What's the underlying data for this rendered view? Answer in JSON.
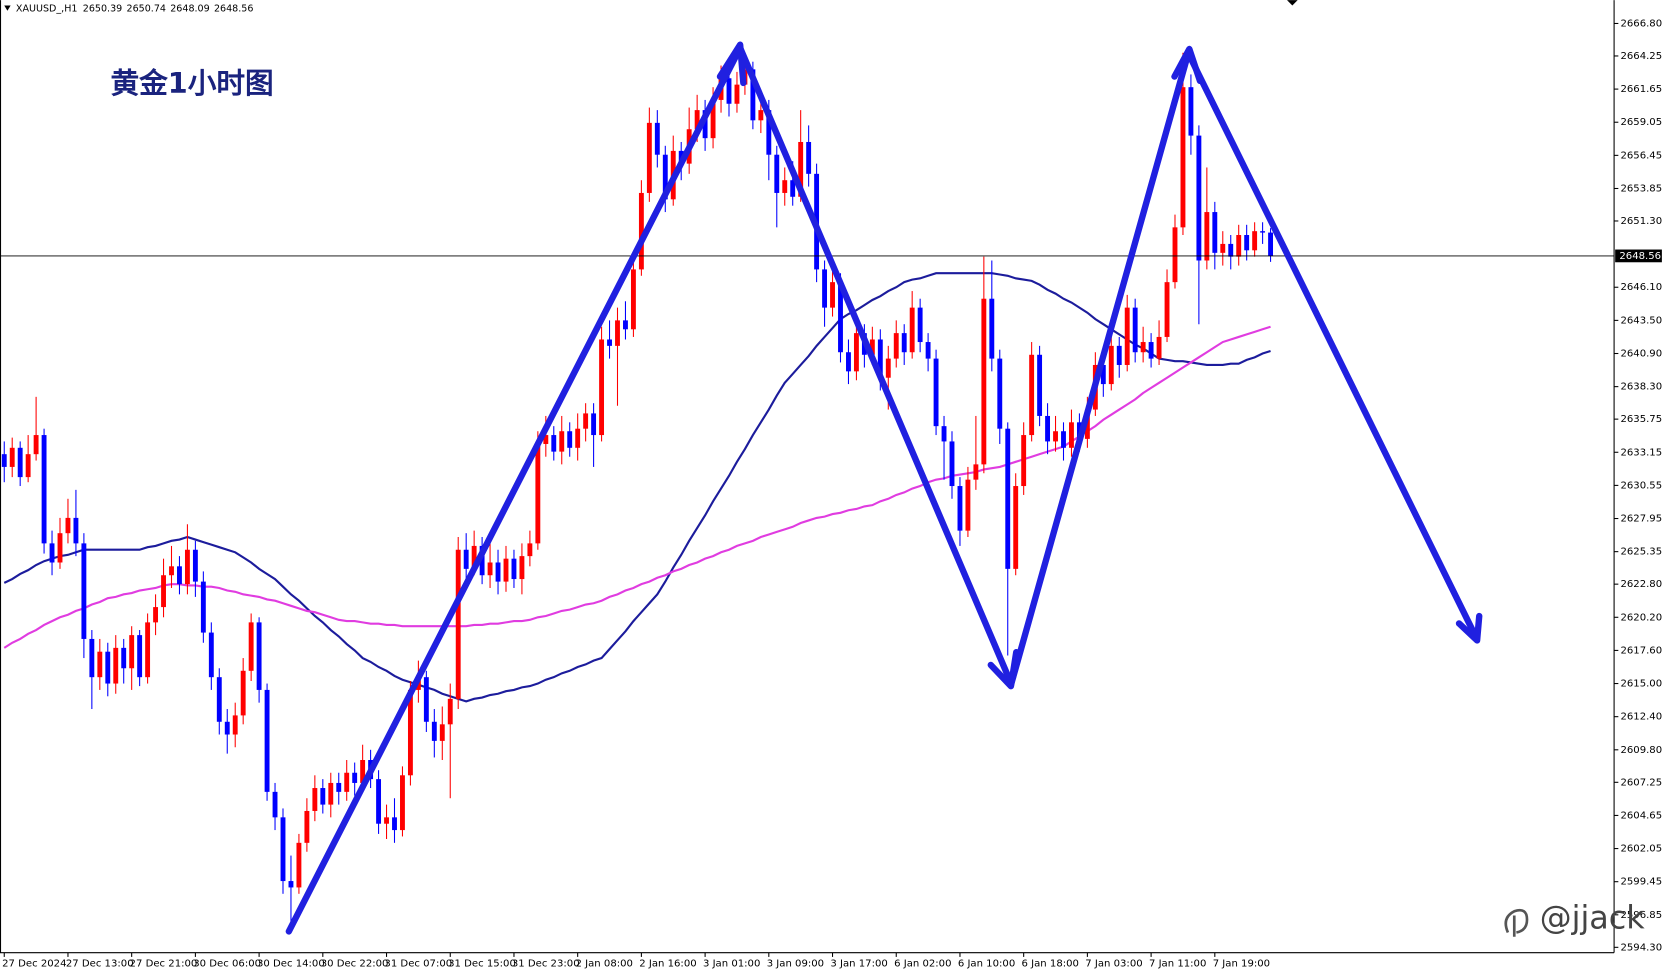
{
  "chart_data": {
    "type": "candlestick",
    "title": "黄金1小时图",
    "symbol": "XAUUSD_,H1",
    "watermark": "@jjack",
    "up_color": "#ff0000",
    "down_color": "#0000ff",
    "categories": [
      "27 Dec 2024",
      null,
      null,
      null,
      null,
      null,
      null,
      null,
      "27 Dec 13:00",
      null,
      null,
      null,
      null,
      null,
      null,
      null,
      "27 Dec 21:00",
      null,
      null,
      null,
      null,
      null,
      null,
      null,
      "30 Dec 06:00",
      null,
      null,
      null,
      null,
      null,
      null,
      null,
      "30 Dec 14:00",
      null,
      null,
      null,
      null,
      null,
      null,
      null,
      "30 Dec 22:00",
      null,
      null,
      null,
      null,
      null,
      null,
      null,
      "31 Dec 07:00",
      null,
      null,
      null,
      null,
      null,
      null,
      null,
      "31 Dec 15:00",
      null,
      null,
      null,
      null,
      null,
      null,
      null,
      "31 Dec 23:00",
      null,
      null,
      null,
      null,
      null,
      null,
      null,
      "2 Jan 08:00",
      null,
      null,
      null,
      null,
      null,
      null,
      null,
      "2 Jan 16:00",
      null,
      null,
      null,
      null,
      null,
      null,
      null,
      "3 Jan 01:00",
      null,
      null,
      null,
      null,
      null,
      null,
      null,
      "3 Jan 09:00",
      null,
      null,
      null,
      null,
      null,
      null,
      null,
      "3 Jan 17:00",
      null,
      null,
      null,
      null,
      null,
      null,
      null,
      "6 Jan 02:00",
      null,
      null,
      null,
      null,
      null,
      null,
      null,
      "6 Jan 10:00",
      null,
      null,
      null,
      null,
      null,
      null,
      null,
      "6 Jan 18:00",
      null,
      null,
      null,
      null,
      null,
      null,
      null,
      "7 Jan 03:00",
      null,
      null,
      null,
      null,
      null,
      null,
      null,
      "7 Jan 11:00",
      null,
      null,
      null,
      null,
      null,
      null,
      null,
      "7 Jan 19:00",
      null,
      null,
      null,
      null,
      null,
      null,
      null
    ],
    "open": [
      2633.0,
      2632.0,
      2633.5,
      2631.2,
      2633.0,
      2634.5,
      2626.0,
      2624.5,
      2626.8,
      2628.0,
      2626.0,
      2618.5,
      2615.5,
      2617.5,
      2615.0,
      2617.8,
      2616.2,
      2618.8,
      2615.5,
      2619.8,
      2621.0,
      2623.5,
      2624.2,
      2622.8,
      2625.5,
      2623.0,
      2619.0,
      2615.5,
      2612.0,
      2611.0,
      2612.5,
      2616.0,
      2619.8,
      2614.5,
      2606.5,
      2604.5,
      2599.5,
      2599.0,
      2602.5,
      2605.0,
      2606.8,
      2605.5,
      2607.2,
      2606.5,
      2608.0,
      2607.2,
      2609.0,
      2607.5,
      2604.0,
      2604.5,
      2603.5,
      2607.8,
      2614.5,
      2615.5,
      2612.0,
      2610.5,
      2611.8,
      2613.8,
      2625.5,
      2624.0,
      2625.8,
      2623.5,
      2624.5,
      2623.0,
      2624.8,
      2623.2,
      2625.0,
      2626.0,
      2633.8,
      2634.5,
      2633.2,
      2634.8,
      2633.5,
      2635.0,
      2636.2,
      2634.5,
      2642.0,
      2641.5,
      2643.5,
      2642.8,
      2647.5,
      2653.5,
      2659.0,
      2656.5,
      2653.0,
      2656.8,
      2655.8,
      2658.5,
      2660.0,
      2657.8,
      2660.8,
      2662.5,
      2660.5,
      2662.0,
      2663.2,
      2659.2,
      2660.0,
      2656.5,
      2653.5,
      2654.5,
      2653.2,
      2657.5,
      2655.0,
      2647.5,
      2644.5,
      2646.5,
      2641.0,
      2639.5,
      2642.5,
      2640.8,
      2642.0,
      2639.0,
      2640.5,
      2642.5,
      2641.0,
      2644.5,
      2641.8,
      2640.5,
      2635.2,
      2634.0,
      2630.5,
      2627.0,
      2631.0,
      2632.2,
      2645.2,
      2640.5,
      2635.0,
      2624.0,
      2630.5,
      2634.5,
      2640.8,
      2636.0,
      2634.0,
      2634.8,
      2633.5,
      2635.5,
      2634.2,
      2636.5,
      2640.0,
      2638.5,
      2641.5,
      2640.0,
      2644.5,
      2641.0,
      2641.8,
      2640.5,
      2642.2,
      2646.5,
      2650.8,
      2661.8,
      2658.0,
      2648.2,
      2652.0,
      2648.8,
      2649.5,
      2648.5,
      2650.2,
      2649.0,
      2650.5,
      2650.39
    ],
    "high": [
      2634.0,
      2634.3,
      2634.0,
      2634.5,
      2637.5,
      2635.0,
      2627.0,
      2628.0,
      2629.5,
      2630.2,
      2626.8,
      2619.2,
      2618.5,
      2618.2,
      2618.8,
      2618.5,
      2619.5,
      2619.2,
      2620.5,
      2622.0,
      2624.8,
      2625.8,
      2625.0,
      2627.5,
      2626.2,
      2623.8,
      2619.8,
      2616.2,
      2613.0,
      2613.5,
      2617.0,
      2620.5,
      2620.2,
      2615.0,
      2607.2,
      2605.2,
      2601.5,
      2603.2,
      2606.0,
      2607.8,
      2607.5,
      2608.0,
      2608.0,
      2609.0,
      2608.8,
      2610.2,
      2609.8,
      2608.2,
      2605.5,
      2606.0,
      2608.5,
      2615.2,
      2616.8,
      2616.0,
      2613.0,
      2613.2,
      2615.0,
      2626.5,
      2626.8,
      2627.0,
      2626.5,
      2626.0,
      2625.5,
      2625.8,
      2625.5,
      2626.0,
      2627.0,
      2634.8,
      2636.0,
      2635.2,
      2636.0,
      2635.5,
      2636.2,
      2637.0,
      2637.0,
      2643.0,
      2643.5,
      2644.5,
      2645.0,
      2648.5,
      2654.5,
      2660.2,
      2660.0,
      2657.2,
      2658.0,
      2657.5,
      2660.2,
      2661.2,
      2660.8,
      2661.8,
      2663.5,
      2663.2,
      2663.0,
      2664.5,
      2663.8,
      2661.0,
      2660.8,
      2657.2,
      2655.5,
      2656.0,
      2660.0,
      2658.8,
      2655.8,
      2648.2,
      2647.5,
      2647.2,
      2642.0,
      2643.5,
      2643.2,
      2643.0,
      2642.8,
      2641.5,
      2643.5,
      2643.2,
      2645.8,
      2645.2,
      2642.5,
      2641.2,
      2636.0,
      2634.8,
      2631.2,
      2632.0,
      2636.0,
      2648.5,
      2648.2,
      2641.2,
      2635.5,
      2631.5,
      2635.5,
      2641.8,
      2641.5,
      2637.0,
      2636.0,
      2635.5,
      2636.5,
      2636.2,
      2637.5,
      2641.0,
      2641.2,
      2642.8,
      2642.2,
      2645.5,
      2645.2,
      2643.0,
      2642.5,
      2643.5,
      2647.5,
      2651.8,
      2664.5,
      2662.8,
      2658.8,
      2655.5,
      2652.8,
      2650.5,
      2650.2,
      2651.0,
      2651.0,
      2651.2,
      2651.2,
      2650.74
    ],
    "low": [
      2630.8,
      2631.2,
      2630.5,
      2630.8,
      2632.5,
      2625.2,
      2623.5,
      2624.0,
      2626.0,
      2625.0,
      2617.0,
      2613.0,
      2614.5,
      2614.0,
      2614.2,
      2615.0,
      2614.5,
      2614.8,
      2615.0,
      2618.8,
      2620.2,
      2622.5,
      2622.0,
      2622.0,
      2621.8,
      2618.2,
      2614.5,
      2611.0,
      2609.5,
      2610.0,
      2611.8,
      2615.2,
      2613.5,
      2605.8,
      2603.5,
      2598.5,
      2596.0,
      2598.5,
      2601.8,
      2604.2,
      2604.8,
      2604.5,
      2605.5,
      2605.8,
      2606.2,
      2606.5,
      2606.8,
      2603.2,
      2602.8,
      2602.5,
      2603.0,
      2607.0,
      2613.5,
      2611.2,
      2609.2,
      2609.0,
      2606.0,
      2613.0,
      2623.2,
      2623.5,
      2622.8,
      2622.5,
      2622.0,
      2622.2,
      2622.5,
      2622.0,
      2624.2,
      2625.5,
      2632.8,
      2632.5,
      2632.2,
      2632.8,
      2632.5,
      2634.0,
      2632.0,
      2634.0,
      2640.5,
      2636.8,
      2642.0,
      2642.2,
      2647.0,
      2652.8,
      2655.5,
      2652.0,
      2652.5,
      2654.5,
      2655.0,
      2657.5,
      2656.8,
      2657.0,
      2659.8,
      2659.5,
      2659.8,
      2661.2,
      2658.5,
      2658.2,
      2654.5,
      2650.8,
      2652.5,
      2652.5,
      2652.8,
      2654.0,
      2646.5,
      2643.0,
      2643.8,
      2640.2,
      2638.5,
      2638.8,
      2639.8,
      2640.0,
      2638.0,
      2636.5,
      2639.8,
      2640.0,
      2640.5,
      2641.0,
      2639.5,
      2634.5,
      2631.0,
      2629.5,
      2625.8,
      2626.5,
      2630.2,
      2631.5,
      2639.5,
      2633.8,
      2617.2,
      2623.5,
      2629.8,
      2634.0,
      2635.2,
      2633.0,
      2633.2,
      2632.5,
      2632.8,
      2633.2,
      2633.5,
      2636.0,
      2637.5,
      2638.0,
      2639.0,
      2639.5,
      2640.2,
      2640.2,
      2639.8,
      2640.0,
      2641.8,
      2646.0,
      2650.2,
      2656.5,
      2643.2,
      2647.5,
      2647.5,
      2647.8,
      2647.5,
      2647.8,
      2648.2,
      2648.5,
      2649.5,
      2648.09
    ],
    "close": [
      2632.0,
      2633.5,
      2631.2,
      2633.0,
      2634.5,
      2626.0,
      2624.5,
      2626.8,
      2628.0,
      2626.0,
      2618.5,
      2615.5,
      2617.5,
      2615.0,
      2617.8,
      2616.2,
      2618.8,
      2615.5,
      2619.8,
      2621.0,
      2623.5,
      2624.2,
      2622.8,
      2625.5,
      2623.0,
      2619.0,
      2615.5,
      2612.0,
      2611.0,
      2612.5,
      2616.0,
      2619.8,
      2614.5,
      2606.5,
      2604.5,
      2599.5,
      2599.0,
      2602.5,
      2605.0,
      2606.8,
      2605.5,
      2607.2,
      2606.5,
      2608.0,
      2607.2,
      2609.0,
      2607.5,
      2604.0,
      2604.5,
      2603.5,
      2607.8,
      2614.5,
      2615.5,
      2612.0,
      2610.5,
      2611.8,
      2613.8,
      2625.5,
      2624.0,
      2625.8,
      2623.5,
      2624.5,
      2623.0,
      2624.8,
      2623.2,
      2625.0,
      2626.0,
      2633.8,
      2634.5,
      2633.2,
      2634.8,
      2633.5,
      2635.0,
      2636.2,
      2634.5,
      2642.0,
      2641.5,
      2643.5,
      2642.8,
      2647.5,
      2653.5,
      2659.0,
      2656.5,
      2653.0,
      2656.8,
      2655.8,
      2658.5,
      2660.0,
      2657.8,
      2660.8,
      2662.5,
      2660.5,
      2662.0,
      2663.2,
      2659.2,
      2660.0,
      2656.5,
      2653.5,
      2654.5,
      2653.2,
      2657.5,
      2655.0,
      2647.5,
      2644.5,
      2646.5,
      2641.0,
      2639.5,
      2642.5,
      2640.8,
      2642.0,
      2639.0,
      2640.5,
      2642.5,
      2641.0,
      2644.5,
      2641.8,
      2640.5,
      2635.2,
      2634.0,
      2630.5,
      2627.0,
      2631.0,
      2632.2,
      2645.2,
      2640.5,
      2635.0,
      2624.0,
      2630.5,
      2634.5,
      2640.8,
      2636.0,
      2634.0,
      2634.8,
      2633.5,
      2635.5,
      2634.2,
      2636.5,
      2640.0,
      2638.5,
      2641.5,
      2640.0,
      2644.5,
      2641.0,
      2641.8,
      2640.5,
      2642.2,
      2646.5,
      2650.8,
      2661.8,
      2658.0,
      2648.2,
      2652.0,
      2648.8,
      2649.5,
      2648.5,
      2650.2,
      2649.0,
      2650.5,
      2650.39,
      2648.56
    ],
    "moving_averages": [
      {
        "color": "#1c1c9c",
        "values": [
          2622.9,
          2623.2,
          2623.6,
          2623.9,
          2624.3,
          2624.6,
          2624.8,
          2625.0,
          2625.1,
          2625.3,
          2625.5,
          2625.5,
          2625.5,
          2625.5,
          2625.5,
          2625.5,
          2625.5,
          2625.5,
          2625.7,
          2625.8,
          2626.0,
          2626.2,
          2626.3,
          2626.5,
          2626.3,
          2626.1,
          2625.9,
          2625.7,
          2625.5,
          2625.3,
          2624.9,
          2624.5,
          2624.0,
          2623.6,
          2623.2,
          2622.6,
          2622.0,
          2621.5,
          2620.9,
          2620.3,
          2619.8,
          2619.2,
          2618.7,
          2618.1,
          2617.6,
          2617.0,
          2616.7,
          2616.3,
          2616.0,
          2615.6,
          2615.3,
          2615.1,
          2614.9,
          2614.7,
          2614.5,
          2614.2,
          2614.0,
          2613.8,
          2613.6,
          2613.8,
          2613.9,
          2614.1,
          2614.2,
          2614.4,
          2614.5,
          2614.7,
          2614.8,
          2615.0,
          2615.3,
          2615.5,
          2615.8,
          2616.0,
          2616.3,
          2616.5,
          2616.8,
          2617.0,
          2617.7,
          2618.4,
          2619.1,
          2619.9,
          2620.6,
          2621.3,
          2622.0,
          2623.0,
          2624.1,
          2625.1,
          2626.2,
          2627.2,
          2628.2,
          2629.3,
          2630.3,
          2631.3,
          2632.4,
          2633.4,
          2634.5,
          2635.5,
          2636.5,
          2637.6,
          2638.6,
          2639.3,
          2640.0,
          2640.7,
          2641.5,
          2642.2,
          2642.9,
          2643.6,
          2644.0,
          2644.3,
          2644.7,
          2645.1,
          2645.4,
          2645.8,
          2646.1,
          2646.5,
          2646.7,
          2646.8,
          2647.0,
          2647.2,
          2647.2,
          2647.2,
          2647.2,
          2647.2,
          2647.2,
          2647.2,
          2647.2,
          2647.1,
          2647.0,
          2646.8,
          2646.7,
          2646.6,
          2646.3,
          2645.9,
          2645.6,
          2645.2,
          2644.9,
          2644.5,
          2644.1,
          2643.6,
          2643.2,
          2642.8,
          2642.4,
          2642.0,
          2641.6,
          2641.3,
          2640.9,
          2640.5,
          2640.4,
          2640.3,
          2640.3,
          2640.2,
          2640.1,
          2640.0,
          2640.0,
          2640.0,
          2640.1,
          2640.1,
          2640.4,
          2640.6,
          2640.9,
          2641.1
        ]
      },
      {
        "color": "#e03ce0",
        "values": [
          2617.8,
          2618.2,
          2618.5,
          2618.9,
          2619.2,
          2619.6,
          2619.9,
          2620.2,
          2620.4,
          2620.7,
          2620.9,
          2621.2,
          2621.4,
          2621.7,
          2621.8,
          2622.0,
          2622.1,
          2622.3,
          2622.4,
          2622.5,
          2622.7,
          2622.8,
          2622.8,
          2622.7,
          2622.7,
          2622.6,
          2622.6,
          2622.5,
          2622.3,
          2622.2,
          2622.0,
          2621.9,
          2621.8,
          2621.6,
          2621.5,
          2621.3,
          2621.1,
          2620.9,
          2620.7,
          2620.6,
          2620.4,
          2620.2,
          2620.0,
          2619.9,
          2619.9,
          2619.8,
          2619.7,
          2619.7,
          2619.6,
          2619.6,
          2619.5,
          2619.5,
          2619.5,
          2619.5,
          2619.5,
          2619.5,
          2619.5,
          2619.5,
          2619.5,
          2619.6,
          2619.6,
          2619.7,
          2619.7,
          2619.8,
          2619.9,
          2619.9,
          2620.0,
          2620.2,
          2620.3,
          2620.5,
          2620.7,
          2620.8,
          2621.0,
          2621.2,
          2621.3,
          2621.5,
          2621.8,
          2622.0,
          2622.3,
          2622.5,
          2622.8,
          2623.0,
          2623.3,
          2623.5,
          2623.8,
          2624.0,
          2624.3,
          2624.5,
          2624.8,
          2625.0,
          2625.3,
          2625.5,
          2625.8,
          2626.0,
          2626.2,
          2626.5,
          2626.7,
          2626.9,
          2627.1,
          2627.3,
          2627.6,
          2627.8,
          2628.0,
          2628.1,
          2628.3,
          2628.4,
          2628.6,
          2628.7,
          2628.9,
          2629.0,
          2629.3,
          2629.5,
          2629.8,
          2630.0,
          2630.3,
          2630.5,
          2630.8,
          2631.0,
          2631.1,
          2631.3,
          2631.4,
          2631.5,
          2631.6,
          2631.8,
          2631.9,
          2632.0,
          2632.2,
          2632.4,
          2632.6,
          2632.8,
          2633.0,
          2633.2,
          2633.4,
          2633.6,
          2634.0,
          2634.4,
          2634.8,
          2635.2,
          2635.7,
          2636.1,
          2636.5,
          2636.9,
          2637.3,
          2637.8,
          2638.2,
          2638.6,
          2639.0,
          2639.4,
          2639.8,
          2640.2,
          2640.6,
          2641.0,
          2641.4,
          2641.8,
          2642.0,
          2642.2,
          2642.4,
          2642.6,
          2642.8,
          2643.0
        ]
      }
    ],
    "ylim": [
      2593.88,
      2668.63
    ],
    "yticks": [
      {
        "value": 2666.8,
        "label": "2666.80"
      },
      2664.25,
      2661.65,
      2659.05,
      2656.45,
      2653.85,
      {
        "value": 2651.3,
        "label": "2651.30"
      },
      {
        "value": 2646.1,
        "label": "2646.10"
      },
      {
        "value": 2643.5,
        "label": "2643.50"
      },
      {
        "value": 2640.9,
        "label": "2640.90"
      },
      {
        "value": 2638.3,
        "label": "2638.30"
      },
      2635.75,
      2633.15,
      2630.55,
      2627.95,
      2625.35,
      {
        "value": 2622.8,
        "label": "2622.80"
      },
      {
        "value": 2620.2,
        "label": "2620.20"
      },
      {
        "value": 2617.6,
        "label": "2617.60"
      },
      {
        "value": 2615,
        "label": "2615.00"
      },
      {
        "value": 2612.4,
        "label": "2612.40"
      },
      {
        "value": 2609.8,
        "label": "2609.80"
      },
      2607.25,
      2604.65,
      2602.05,
      2599.45,
      2596.85,
      {
        "value": 2594.3,
        "label": "2594.30"
      }
    ],
    "grid": false,
    "last_price_line": true
  }
}
